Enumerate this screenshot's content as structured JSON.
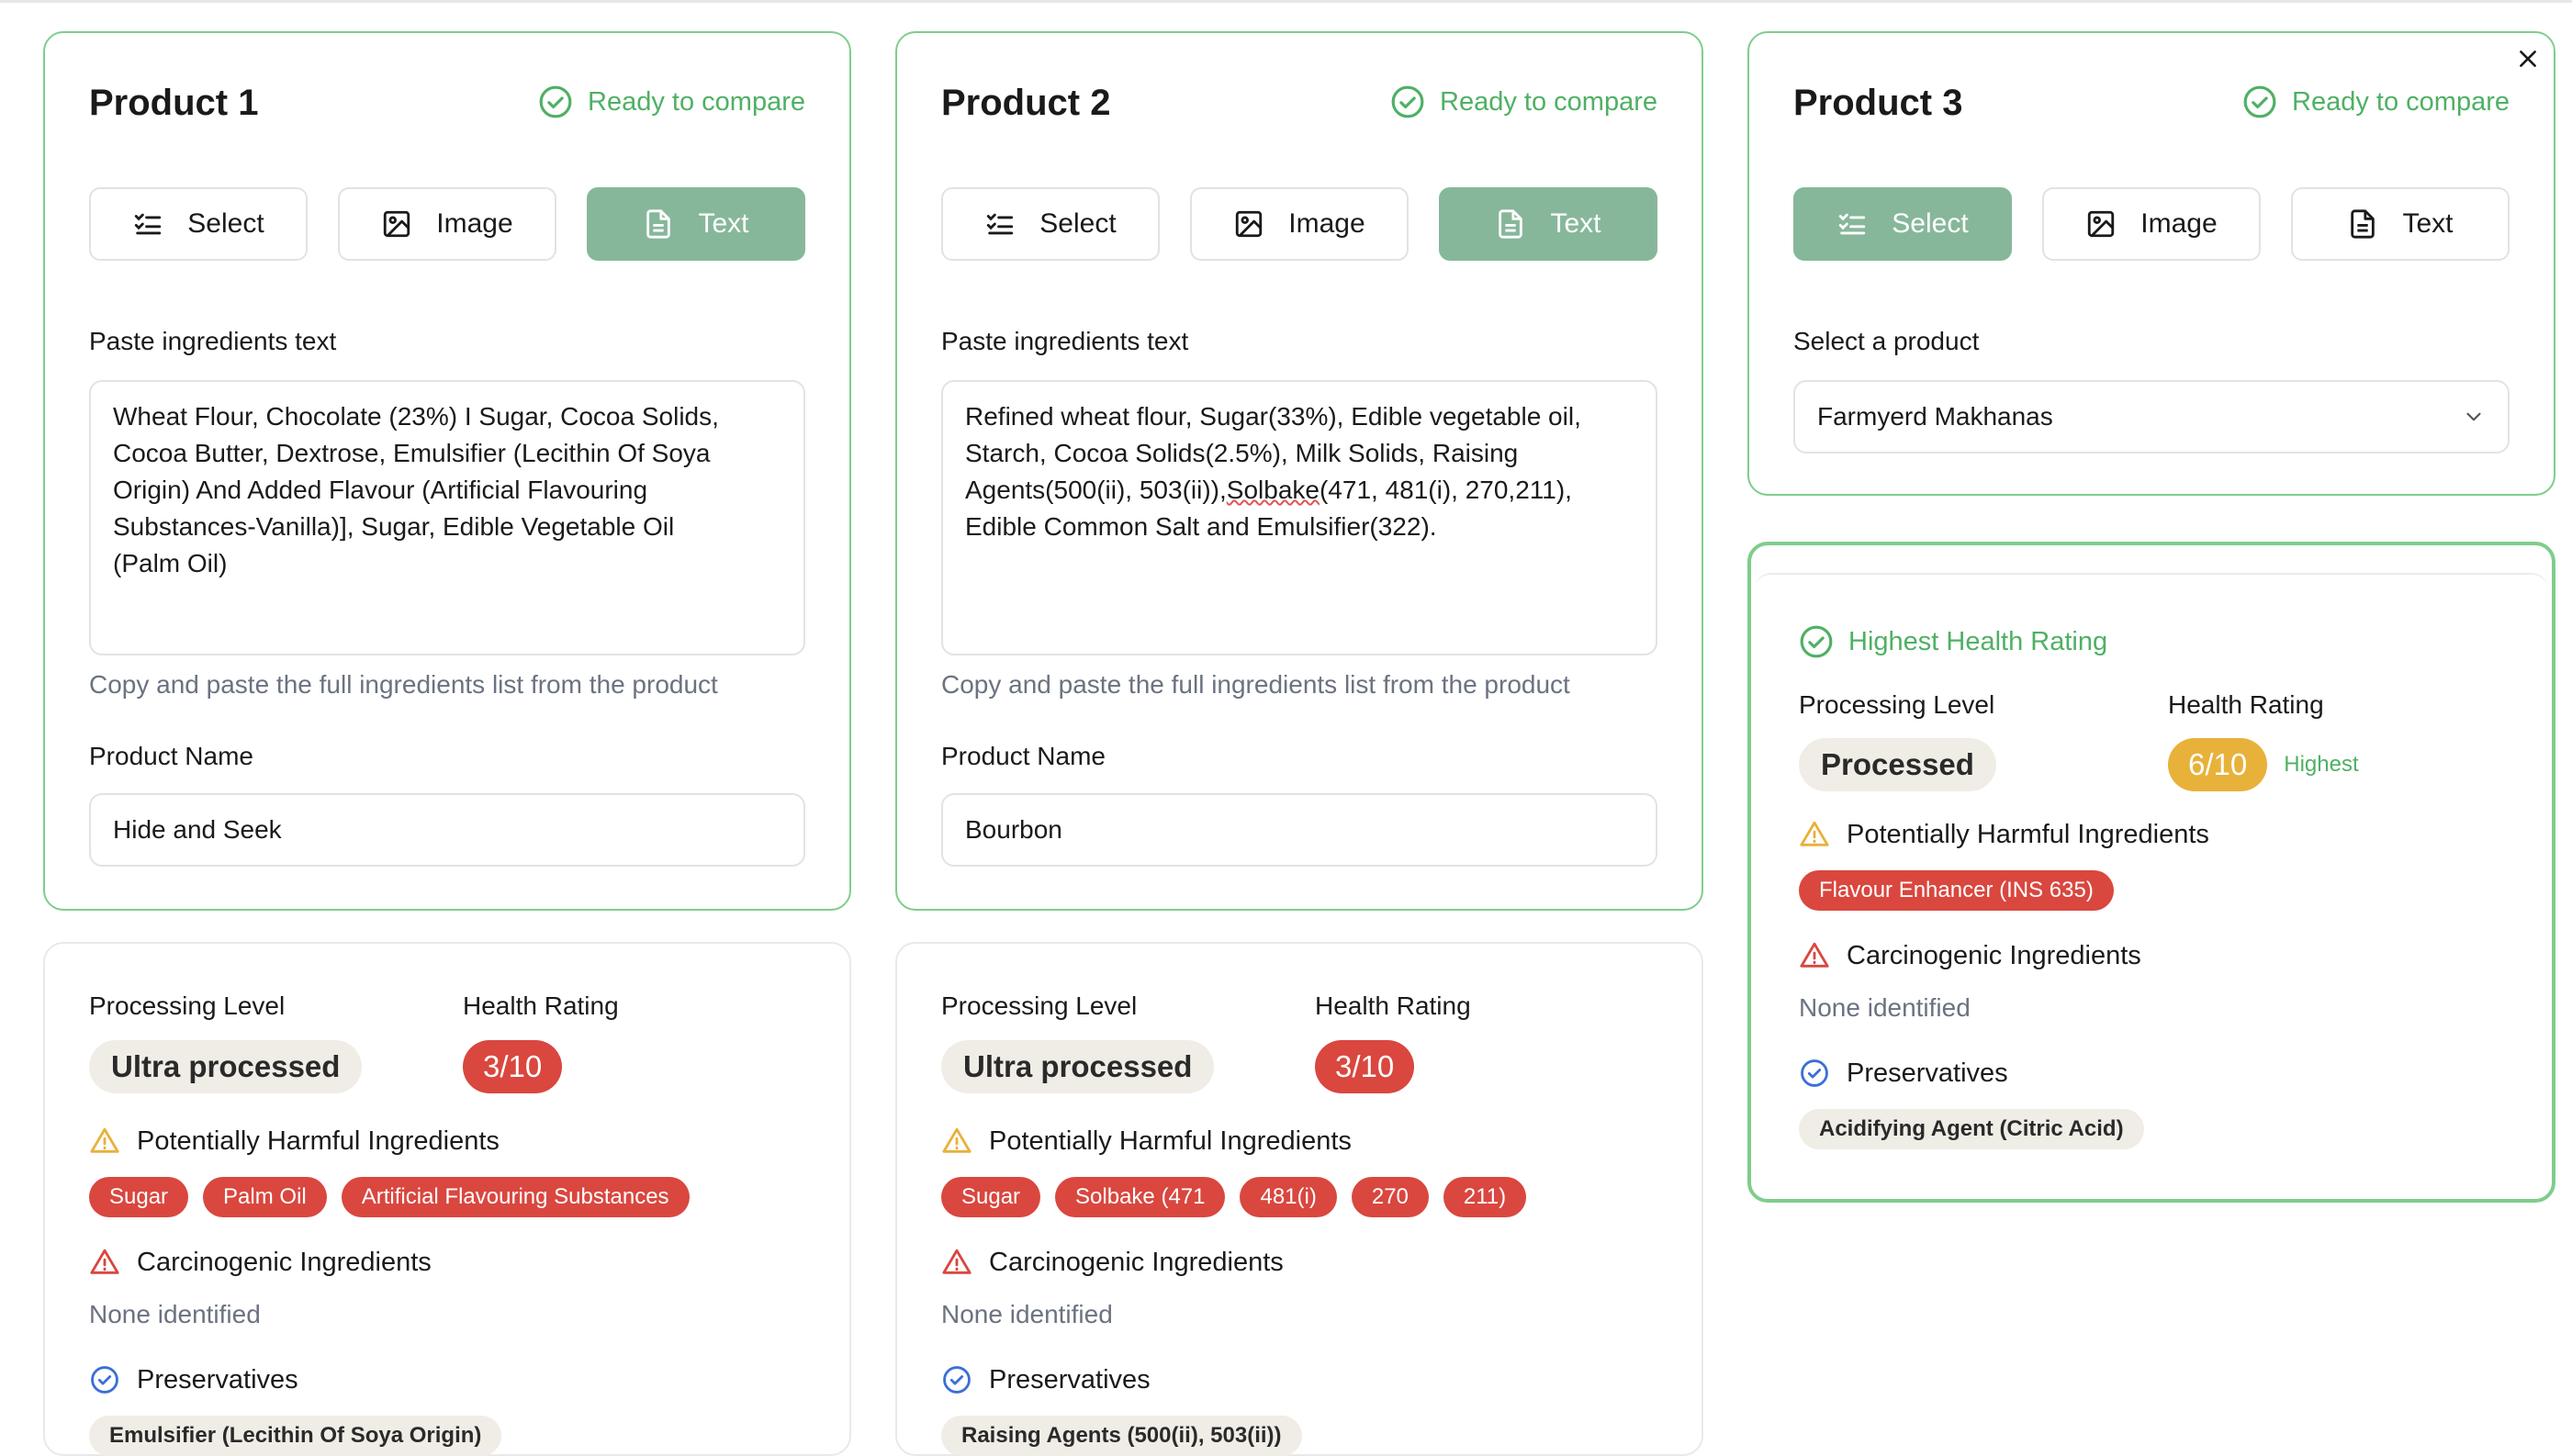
{
  "products": [
    {
      "title": "Product 1",
      "status": "Ready to compare",
      "modes": [
        "Select",
        "Image",
        "Text"
      ],
      "active_mode": 2,
      "ingredients_label": "Paste ingredients text",
      "ingredients_lines": [
        "Wheat Flour, Chocolate (23%) I Sugar, Cocoa Solids,",
        "Cocoa Butter, Dextrose, Emulsifier (Lecithin Of Soya",
        "Origin) And Added Flavour (Artificial Flavouring",
        "Substances-Vanilla)], Sugar, Edible Vegetable Oil",
        "(Palm Oil)"
      ],
      "hint": "Copy and paste the full ingredients list from the product",
      "name_label": "Product Name",
      "name_value": "Hide and Seek"
    },
    {
      "title": "Product 2",
      "status": "Ready to compare",
      "modes": [
        "Select",
        "Image",
        "Text"
      ],
      "active_mode": 2,
      "ingredients_label": "Paste ingredients text",
      "ingredients_lines": [
        "Refined wheat flour, Sugar(33%), Edible vegetable oil,",
        "Starch, Cocoa Solids(2.5%), Milk Solids, Raising",
        "Agents(500(ii), 503(ii)),",
        "Edible Common Salt and Emulsifier(322)."
      ],
      "line3_misspelled": "Solbake",
      "line3_tail": "(471, 481(i), 270,211),",
      "hint": "Copy and paste the full ingredients list from the product",
      "name_label": "Product Name",
      "name_value": "Bourbon"
    },
    {
      "title": "Product 3",
      "status": "Ready to compare",
      "modes": [
        "Select",
        "Image",
        "Text"
      ],
      "active_mode": 0,
      "select_label": "Select a product",
      "select_value": "Farmyerd Makhanas"
    }
  ],
  "results": [
    {
      "processing_label": "Processing Level",
      "processing_value": "Ultra processed",
      "rating_label": "Health Rating",
      "rating_value": "3/10",
      "harmful_label": "Potentially Harmful Ingredients",
      "harmful": [
        "Sugar",
        "Palm Oil",
        "Artificial Flavouring Substances"
      ],
      "carcinogenic_label": "Carcinogenic Ingredients",
      "carcinogenic_value": "None identified",
      "preservatives_label": "Preservatives",
      "preservatives": [
        "Emulsifier (Lecithin Of Soya Origin)"
      ]
    },
    {
      "processing_label": "Processing Level",
      "processing_value": "Ultra processed",
      "rating_label": "Health Rating",
      "rating_value": "3/10",
      "harmful_label": "Potentially Harmful Ingredients",
      "harmful": [
        "Sugar",
        "Solbake (471",
        "481(i)",
        "270",
        "211)"
      ],
      "carcinogenic_label": "Carcinogenic Ingredients",
      "carcinogenic_value": "None identified",
      "preservatives_label": "Preservatives",
      "preservatives": [
        "Raising Agents (500(ii), 503(ii))"
      ]
    },
    {
      "badge": "Highest Health Rating",
      "processing_label": "Processing Level",
      "processing_value": "Processed",
      "rating_label": "Health Rating",
      "rating_value": "6/10",
      "rating_note": "Highest",
      "harmful_label": "Potentially Harmful Ingredients",
      "harmful": [
        "Flavour Enhancer (INS 635)"
      ],
      "carcinogenic_label": "Carcinogenic Ingredients",
      "carcinogenic_value": "None identified",
      "preservatives_label": "Preservatives",
      "preservatives": [
        "Acidifying Agent (Citric Acid)"
      ]
    }
  ],
  "colors": {
    "accent_green": "#4fb064",
    "active_button": "#87b79a",
    "danger_red": "#d9473f",
    "amber": "#e8b13a",
    "info_blue": "#3b6fd8"
  }
}
